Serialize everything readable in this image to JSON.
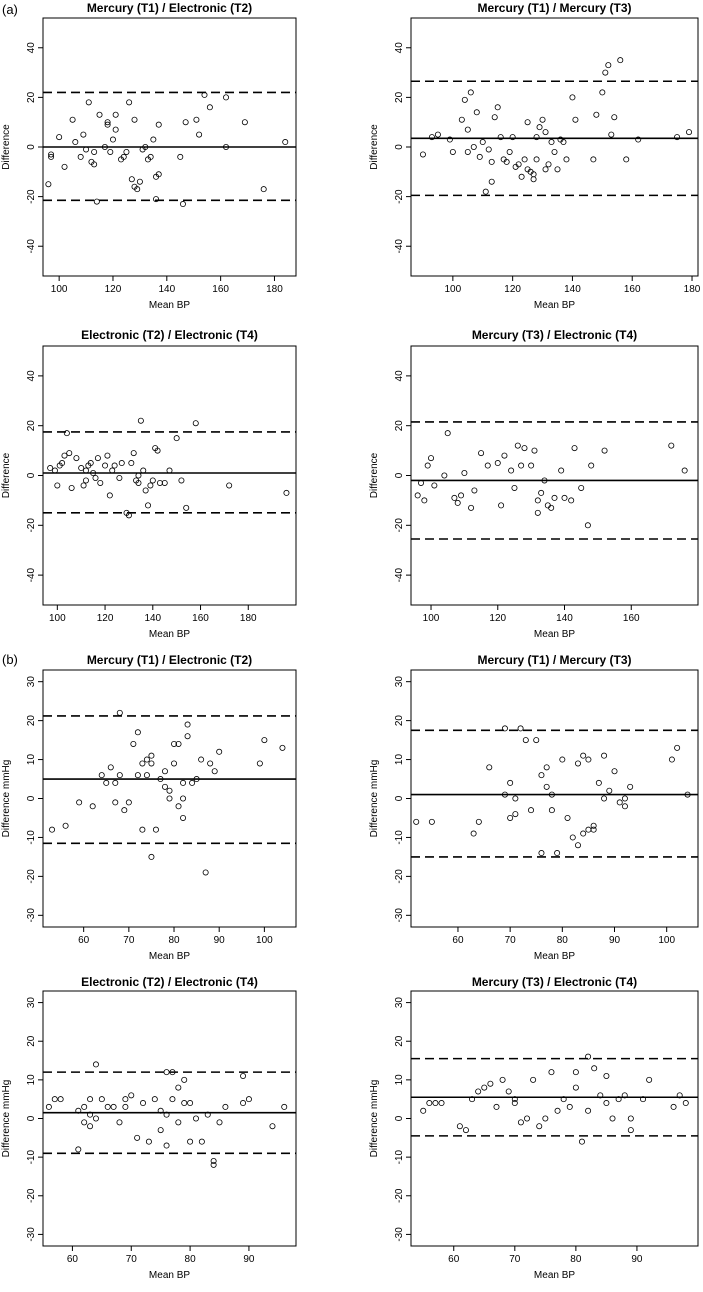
{
  "panel_labels": {
    "a": "(a)",
    "b": "(b)"
  },
  "chart_data": [
    {
      "type": "scatter",
      "title": "Mercury (T1) / Electronic (T2)",
      "xlabel": "Mean BP",
      "ylabel": "Difference",
      "xlim": [
        94,
        188
      ],
      "ylim": [
        -52,
        52
      ],
      "xticks": [
        100,
        120,
        140,
        160,
        180
      ],
      "yticks": [
        -40,
        -20,
        0,
        20,
        40
      ],
      "mean_line": 0,
      "limits": [
        22,
        -21.5
      ],
      "x": [
        96,
        97,
        97,
        100,
        102,
        105,
        106,
        108,
        109,
        110,
        111,
        112,
        113,
        113,
        114,
        115,
        117,
        118,
        118,
        119,
        120,
        121,
        121,
        123,
        124,
        125,
        126,
        127,
        128,
        128,
        129,
        130,
        131,
        132,
        133,
        134,
        135,
        136,
        136,
        137,
        137,
        145,
        146,
        147,
        151,
        152,
        154,
        156,
        162,
        162,
        169,
        176,
        184
      ],
      "y": [
        -15,
        -4,
        -3,
        4,
        -8,
        11,
        2,
        -4,
        5,
        -1,
        18,
        -6,
        -2,
        -7,
        -22,
        13,
        0,
        9,
        10,
        -2,
        3,
        7,
        13,
        -5,
        -4,
        -2,
        18,
        -13,
        -16,
        11,
        -17,
        -14,
        -1,
        0,
        -5,
        -4,
        3,
        -21,
        -12,
        9,
        -11,
        -4,
        -23,
        10,
        11,
        5,
        21,
        16,
        20,
        0,
        10,
        -17,
        2
      ]
    },
    {
      "type": "scatter",
      "title": "Mercury (T1) / Mercury (T3)",
      "xlabel": "Mean BP",
      "ylabel": "Difference",
      "xlim": [
        86,
        182
      ],
      "ylim": [
        -52,
        52
      ],
      "xticks": [
        100,
        120,
        140,
        160,
        180
      ],
      "yticks": [
        -40,
        -20,
        0,
        20,
        40
      ],
      "mean_line": 3.5,
      "limits": [
        26.5,
        -19.5
      ],
      "x": [
        90,
        93,
        95,
        99,
        100,
        103,
        104,
        105,
        105,
        106,
        107,
        108,
        109,
        110,
        111,
        112,
        113,
        113,
        114,
        115,
        116,
        117,
        118,
        119,
        120,
        121,
        122,
        123,
        124,
        125,
        125,
        126,
        127,
        127,
        128,
        128,
        129,
        130,
        131,
        131,
        132,
        133,
        134,
        135,
        136,
        137,
        138,
        140,
        141,
        147,
        148,
        150,
        151,
        152,
        153,
        154,
        156,
        158,
        162,
        175,
        179
      ],
      "y": [
        -3,
        4,
        5,
        3,
        -2,
        11,
        19,
        7,
        -2,
        22,
        0,
        14,
        -4,
        2,
        -18,
        -1,
        -14,
        -6,
        12,
        16,
        4,
        -5,
        -6,
        -2,
        4,
        -8,
        -7,
        -12,
        -5,
        -9,
        10,
        -10,
        -11,
        -13,
        -5,
        4,
        8,
        11,
        6,
        -9,
        -7,
        2,
        -2,
        -9,
        3,
        2,
        -5,
        20,
        11,
        -5,
        13,
        22,
        30,
        33,
        5,
        12,
        35,
        -5,
        3,
        4,
        6
      ]
    },
    {
      "type": "scatter",
      "title": "Electronic (T2) / Electronic (T4)",
      "xlabel": "Mean BP",
      "ylabel": "Difference",
      "xlim": [
        94,
        200
      ],
      "ylim": [
        -52,
        52
      ],
      "xticks": [
        100,
        120,
        140,
        160,
        180
      ],
      "yticks": [
        -40,
        -20,
        0,
        20,
        40
      ],
      "mean_line": 1,
      "limits": [
        17.5,
        -15
      ],
      "x": [
        97,
        99,
        100,
        101,
        102,
        103,
        104,
        105,
        106,
        108,
        110,
        111,
        112,
        112,
        113,
        114,
        115,
        116,
        117,
        118,
        120,
        121,
        122,
        123,
        124,
        126,
        127,
        129,
        130,
        131,
        132,
        133,
        134,
        134,
        135,
        136,
        137,
        138,
        139,
        140,
        141,
        142,
        143,
        145,
        147,
        150,
        152,
        154,
        158,
        172,
        196
      ],
      "y": [
        3,
        2,
        -4,
        4,
        5,
        8,
        17,
        9,
        -5,
        7,
        3,
        -4,
        -2,
        2,
        4,
        5,
        1,
        -1,
        7,
        -3,
        4,
        8,
        -8,
        2,
        4,
        -1,
        5,
        -15,
        -16,
        5,
        9,
        -2,
        -3,
        0,
        22,
        2,
        -6,
        -12,
        -4,
        -2,
        11,
        10,
        -3,
        -3,
        2,
        15,
        -2,
        -13,
        21,
        -4,
        -7
      ]
    },
    {
      "type": "scatter",
      "title": "Mercury (T3) / Electronic (T4)",
      "xlabel": "Mean BP",
      "ylabel": "Difference",
      "xlim": [
        94,
        180
      ],
      "ylim": [
        -52,
        52
      ],
      "xticks": [
        100,
        120,
        140,
        160
      ],
      "yticks": [
        -40,
        -20,
        0,
        20,
        40
      ],
      "mean_line": -2,
      "limits": [
        21.5,
        -25.5
      ],
      "x": [
        96,
        97,
        98,
        99,
        100,
        101,
        104,
        105,
        107,
        108,
        109,
        110,
        112,
        113,
        115,
        117,
        120,
        121,
        122,
        124,
        125,
        126,
        127,
        128,
        130,
        131,
        132,
        132,
        133,
        134,
        135,
        136,
        137,
        139,
        140,
        142,
        143,
        145,
        147,
        148,
        152,
        172,
        176
      ],
      "y": [
        -8,
        -3,
        -10,
        4,
        7,
        -4,
        0,
        17,
        -9,
        -11,
        -8,
        1,
        -13,
        -6,
        9,
        4,
        5,
        -12,
        8,
        2,
        -5,
        12,
        4,
        11,
        4,
        10,
        -10,
        -15,
        -7,
        -2,
        -12,
        -13,
        -9,
        2,
        -9,
        -10,
        11,
        -5,
        -20,
        4,
        10,
        12,
        2
      ]
    },
    {
      "type": "scatter",
      "title": "Mercury (T1) / Electronic (T2)",
      "xlabel": "Mean BP",
      "ylabel": "Difference mmHg",
      "xlim": [
        51,
        107
      ],
      "ylim": [
        -33,
        33
      ],
      "xticks": [
        60,
        70,
        80,
        90,
        100
      ],
      "yticks": [
        -30,
        -20,
        -10,
        0,
        10,
        20,
        30
      ],
      "mean_line": 5,
      "limits": [
        21.2,
        -11.5
      ],
      "x": [
        53,
        56,
        59,
        62,
        64,
        65,
        66,
        67,
        67,
        68,
        68,
        69,
        70,
        71,
        72,
        72,
        73,
        73,
        74,
        74,
        75,
        75,
        75,
        76,
        77,
        78,
        78,
        79,
        79,
        80,
        80,
        81,
        81,
        82,
        82,
        82,
        83,
        83,
        84,
        85,
        86,
        87,
        88,
        89,
        90,
        99,
        100,
        104
      ],
      "y": [
        -8,
        -7,
        -1,
        -2,
        6,
        4,
        8,
        -1,
        4,
        6,
        22,
        -3,
        -1,
        14,
        17,
        6,
        -8,
        9,
        6,
        10,
        9,
        11,
        -15,
        -8,
        5,
        7,
        3,
        2,
        0,
        9,
        14,
        -2,
        14,
        4,
        -5,
        0,
        19,
        16,
        4,
        5,
        10,
        -19,
        9,
        7,
        12,
        9,
        15,
        13
      ]
    },
    {
      "type": "scatter",
      "title": "Mercury (T1) / Mercury (T3)",
      "xlabel": "Mean BP",
      "ylabel": "Difference mmHg",
      "xlim": [
        51,
        106
      ],
      "ylim": [
        -33,
        33
      ],
      "xticks": [
        60,
        70,
        80,
        90,
        100
      ],
      "yticks": [
        -30,
        -20,
        -10,
        0,
        10,
        20,
        30
      ],
      "mean_line": 1,
      "limits": [
        17.5,
        -15
      ],
      "x": [
        52,
        55,
        63,
        64,
        66,
        69,
        69,
        70,
        70,
        71,
        71,
        72,
        73,
        74,
        75,
        76,
        76,
        77,
        77,
        78,
        78,
        79,
        80,
        81,
        82,
        83,
        83,
        84,
        84,
        85,
        85,
        86,
        86,
        87,
        88,
        88,
        89,
        90,
        91,
        92,
        92,
        93,
        101,
        102,
        104
      ],
      "y": [
        -6,
        -6,
        -9,
        -6,
        8,
        1,
        18,
        -5,
        4,
        -4,
        0,
        18,
        15,
        -3,
        15,
        6,
        -14,
        3,
        8,
        -3,
        1,
        -14,
        10,
        -5,
        -10,
        9,
        -12,
        11,
        -9,
        -8,
        10,
        -8,
        -7,
        4,
        0,
        11,
        2,
        7,
        -1,
        -2,
        0,
        3,
        10,
        13,
        1
      ]
    },
    {
      "type": "scatter",
      "title": "Electronic (T2) / Electronic (T4)",
      "xlabel": "Mean BP",
      "ylabel": "Difference mmHg",
      "xlim": [
        55,
        98
      ],
      "ylim": [
        -33,
        33
      ],
      "xticks": [
        60,
        70,
        80,
        90
      ],
      "yticks": [
        -30,
        -20,
        -10,
        0,
        10,
        20,
        30
      ],
      "mean_line": 1.5,
      "limits": [
        12,
        -9
      ],
      "x": [
        56,
        57,
        58,
        61,
        61,
        62,
        62,
        63,
        63,
        63,
        64,
        64,
        65,
        66,
        67,
        68,
        69,
        69,
        70,
        71,
        72,
        73,
        74,
        75,
        75,
        76,
        76,
        76,
        77,
        77,
        78,
        78,
        79,
        79,
        80,
        80,
        81,
        82,
        83,
        84,
        84,
        85,
        86,
        89,
        89,
        90,
        94,
        96
      ],
      "y": [
        3,
        5,
        5,
        2,
        -8,
        3,
        -1,
        5,
        1,
        -2,
        14,
        0,
        5,
        3,
        3,
        -1,
        5,
        3,
        6,
        -5,
        4,
        -6,
        5,
        -3,
        2,
        12,
        -7,
        1,
        12,
        5,
        8,
        -1,
        10,
        4,
        -6,
        4,
        0,
        -6,
        1,
        -11,
        -12,
        -1,
        3,
        4,
        11,
        5,
        -2,
        3
      ]
    },
    {
      "type": "scatter",
      "title": "Mercury (T3) / Electronic (T4)",
      "xlabel": "Mean BP",
      "ylabel": "Difference mmHg",
      "xlim": [
        53,
        100
      ],
      "ylim": [
        -33,
        33
      ],
      "xticks": [
        60,
        70,
        80,
        90
      ],
      "yticks": [
        -30,
        -20,
        -10,
        0,
        10,
        20,
        30
      ],
      "mean_line": 5.5,
      "limits": [
        15.5,
        -4.5
      ],
      "x": [
        55,
        56,
        57,
        58,
        61,
        62,
        63,
        64,
        65,
        66,
        67,
        68,
        69,
        70,
        70,
        71,
        72,
        73,
        74,
        75,
        76,
        77,
        78,
        79,
        80,
        80,
        81,
        82,
        82,
        83,
        84,
        85,
        85,
        86,
        87,
        88,
        89,
        89,
        91,
        92,
        96,
        97,
        98
      ],
      "y": [
        2,
        4,
        4,
        4,
        -2,
        -3,
        5,
        7,
        8,
        9,
        3,
        10,
        7,
        4,
        5,
        -1,
        0,
        10,
        -2,
        0,
        12,
        2,
        5,
        3,
        12,
        8,
        -6,
        16,
        2,
        13,
        6,
        4,
        11,
        0,
        5,
        6,
        -3,
        0,
        5,
        10,
        3,
        6,
        4
      ]
    }
  ]
}
